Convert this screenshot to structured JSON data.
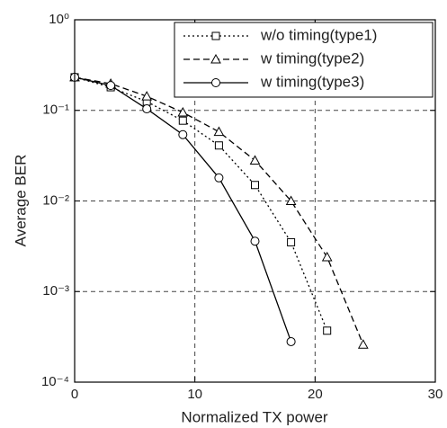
{
  "chart_data": {
    "type": "line",
    "xlabel": "Normalized TX power",
    "ylabel": "Average BER",
    "x": [
      0,
      3,
      6,
      9,
      12,
      15,
      18,
      21,
      24
    ],
    "series": [
      {
        "name": "w/o timing(type1)",
        "color": "#000000",
        "linestyle": "dotted",
        "marker": "square",
        "values": [
          0.232,
          0.18,
          0.125,
          0.077,
          0.041,
          0.015,
          0.0035,
          0.00037,
          null
        ]
      },
      {
        "name": "w timing(type2)",
        "color": "#000000",
        "linestyle": "dashed",
        "marker": "triangle",
        "values": [
          0.232,
          0.197,
          0.143,
          0.095,
          0.058,
          0.028,
          0.01,
          0.0024,
          0.00026
        ]
      },
      {
        "name": "w timing(type3)",
        "color": "#000000",
        "linestyle": "solid",
        "marker": "circle",
        "values": [
          0.232,
          0.188,
          0.104,
          0.054,
          0.018,
          0.0036,
          0.00028,
          null,
          null
        ]
      }
    ],
    "xlim": [
      0,
      30
    ],
    "xticks": [
      0,
      10,
      20,
      30
    ],
    "ylim": [
      0.0001,
      1
    ],
    "ylog": true,
    "yticks": [
      {
        "value": 1,
        "label": "10⁰"
      },
      {
        "value": 0.1,
        "label": "10⁻¹"
      },
      {
        "value": 0.01,
        "label": "10⁻²"
      },
      {
        "value": 0.001,
        "label": "10⁻³"
      },
      {
        "value": 0.0001,
        "label": "10⁻⁴"
      }
    ],
    "grid": true,
    "legend": "upper right"
  }
}
